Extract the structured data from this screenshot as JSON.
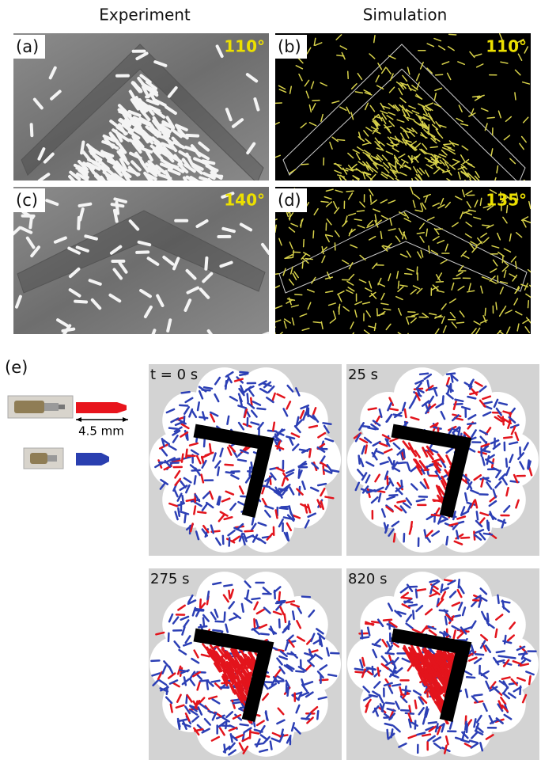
{
  "header": {
    "left": "Experiment",
    "right": "Simulation"
  },
  "panels": [
    {
      "label": "(a)",
      "angle": "110°"
    },
    {
      "label": "(b)",
      "angle": "110°"
    },
    {
      "label": "(c)",
      "angle": "140°"
    },
    {
      "label": "(d)",
      "angle": "135°"
    }
  ],
  "part_e": {
    "label": "(e)",
    "scale": "4.5 mm",
    "frames": [
      "t = 0 s",
      "25 s",
      "275 s",
      "820 s"
    ]
  }
}
